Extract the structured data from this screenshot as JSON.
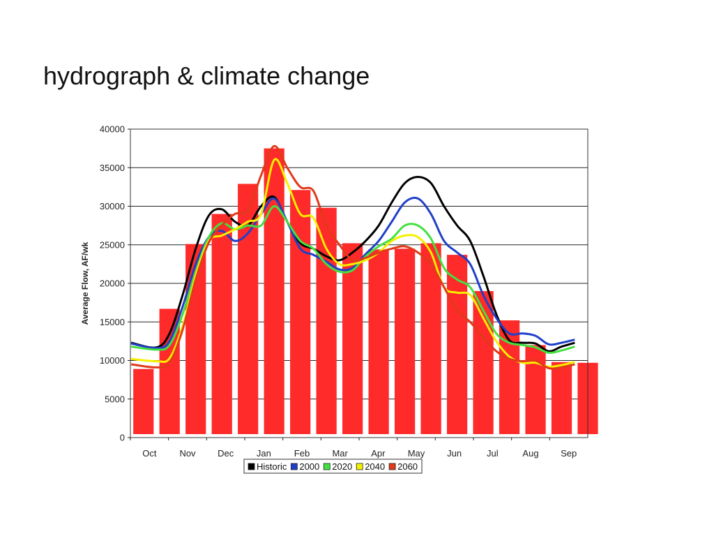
{
  "slide": {
    "title": "hydrograph & climate change"
  },
  "chart_data": {
    "type": "bar",
    "title": "",
    "xlabel": "",
    "ylabel": "Average Flow, AF/wk",
    "ylim": [
      0,
      40000
    ],
    "yticks": [
      0,
      5000,
      10000,
      15000,
      20000,
      25000,
      30000,
      35000,
      40000
    ],
    "grid": true,
    "legend_position": "bottom",
    "month_labels": [
      "Oct",
      "Nov",
      "Dec",
      "Jan",
      "Feb",
      "Mar",
      "Apr",
      "May",
      "Jun",
      "Jul",
      "Aug",
      "Sep"
    ],
    "bars": {
      "color": "#ff2a2a",
      "values": [
        8900,
        16700,
        25100,
        29000,
        32900,
        37500,
        32100,
        29800,
        25200,
        24400,
        24500,
        25200,
        23700,
        19000,
        15200,
        12000,
        9800,
        9700
      ]
    },
    "series": [
      {
        "name": "Historic",
        "color": "#000000",
        "points": [
          [
            0,
            12300
          ],
          [
            0.5,
            11700
          ],
          [
            1,
            13500
          ],
          [
            1.5,
            18500
          ],
          [
            2,
            24500
          ],
          [
            2.5,
            28800
          ],
          [
            3,
            29600
          ],
          [
            3.5,
            28000
          ],
          [
            4,
            27500
          ],
          [
            4.5,
            30000
          ],
          [
            5,
            31200
          ],
          [
            5.5,
            28000
          ],
          [
            6,
            25200
          ],
          [
            6.5,
            24500
          ],
          [
            7,
            23500
          ],
          [
            7.5,
            23000
          ],
          [
            8,
            24000
          ],
          [
            8.5,
            25500
          ],
          [
            9,
            27500
          ],
          [
            9.5,
            30500
          ],
          [
            10,
            33000
          ],
          [
            10.5,
            33800
          ],
          [
            11,
            33000
          ],
          [
            11.5,
            30000
          ],
          [
            12,
            27500
          ],
          [
            12.5,
            25500
          ],
          [
            13,
            21000
          ],
          [
            13.5,
            16000
          ],
          [
            14,
            12600
          ],
          [
            14.5,
            12300
          ],
          [
            15,
            12200
          ],
          [
            15.5,
            11200
          ],
          [
            16,
            11800
          ],
          [
            16.5,
            12300
          ]
        ]
      },
      {
        "name": "2000",
        "color": "#1f3fc8",
        "points": [
          [
            0,
            12200
          ],
          [
            0.5,
            11600
          ],
          [
            1,
            12500
          ],
          [
            1.5,
            17000
          ],
          [
            2,
            22500
          ],
          [
            2.5,
            26000
          ],
          [
            3,
            26800
          ],
          [
            3.5,
            25500
          ],
          [
            4,
            26500
          ],
          [
            4.5,
            29000
          ],
          [
            5,
            31000
          ],
          [
            5.5,
            28000
          ],
          [
            6,
            24500
          ],
          [
            6.5,
            23700
          ],
          [
            7,
            22800
          ],
          [
            7.5,
            21800
          ],
          [
            8,
            22000
          ],
          [
            8.5,
            23800
          ],
          [
            9,
            25500
          ],
          [
            9.5,
            28000
          ],
          [
            10,
            30500
          ],
          [
            10.5,
            31000
          ],
          [
            11,
            29000
          ],
          [
            11.5,
            25500
          ],
          [
            12,
            24000
          ],
          [
            12.5,
            22500
          ],
          [
            13,
            18500
          ],
          [
            13.5,
            15500
          ],
          [
            14,
            13500
          ],
          [
            14.5,
            13500
          ],
          [
            15,
            13200
          ],
          [
            15.5,
            12100
          ],
          [
            16,
            12300
          ],
          [
            16.5,
            12700
          ]
        ]
      },
      {
        "name": "2020",
        "color": "#44e040",
        "points": [
          [
            0,
            11800
          ],
          [
            0.5,
            11400
          ],
          [
            1,
            12000
          ],
          [
            1.5,
            16000
          ],
          [
            2,
            21500
          ],
          [
            2.5,
            26000
          ],
          [
            3,
            27800
          ],
          [
            3.5,
            27000
          ],
          [
            4,
            27500
          ],
          [
            4.5,
            27500
          ],
          [
            5,
            30000
          ],
          [
            5.5,
            28000
          ],
          [
            6,
            25500
          ],
          [
            6.5,
            24500
          ],
          [
            7,
            22500
          ],
          [
            7.5,
            21500
          ],
          [
            8,
            21700
          ],
          [
            8.5,
            23500
          ],
          [
            9,
            24800
          ],
          [
            9.5,
            25800
          ],
          [
            10,
            27500
          ],
          [
            10.5,
            27500
          ],
          [
            11,
            25800
          ],
          [
            11.5,
            22000
          ],
          [
            12,
            20500
          ],
          [
            12.5,
            19500
          ],
          [
            13,
            16500
          ],
          [
            13.5,
            13500
          ],
          [
            14,
            12300
          ],
          [
            14.5,
            12000
          ],
          [
            15,
            11700
          ],
          [
            15.5,
            11000
          ],
          [
            16,
            11300
          ],
          [
            16.5,
            11800
          ]
        ]
      },
      {
        "name": "2040",
        "color": "#f5f000",
        "points": [
          [
            0,
            10200
          ],
          [
            0.5,
            9900
          ],
          [
            1,
            10300
          ],
          [
            1.5,
            14500
          ],
          [
            2,
            21000
          ],
          [
            2.5,
            25500
          ],
          [
            3,
            26200
          ],
          [
            3.5,
            27000
          ],
          [
            4,
            28000
          ],
          [
            4.5,
            29000
          ],
          [
            5,
            36000
          ],
          [
            5.5,
            33000
          ],
          [
            6,
            29000
          ],
          [
            6.5,
            28500
          ],
          [
            7,
            24500
          ],
          [
            7.5,
            22500
          ],
          [
            8,
            22500
          ],
          [
            8.5,
            23000
          ],
          [
            9,
            24000
          ],
          [
            9.5,
            25500
          ],
          [
            10,
            26200
          ],
          [
            10.5,
            26000
          ],
          [
            11,
            24000
          ],
          [
            11.5,
            19500
          ],
          [
            12,
            18800
          ],
          [
            12.5,
            18500
          ],
          [
            13,
            15500
          ],
          [
            13.5,
            12500
          ],
          [
            14,
            10500
          ],
          [
            14.5,
            9700
          ],
          [
            15,
            9700
          ],
          [
            15.5,
            9200
          ],
          [
            16,
            9400
          ],
          [
            16.5,
            9800
          ]
        ]
      },
      {
        "name": "2060",
        "color": "#e03a1a",
        "points": [
          [
            0,
            9500
          ],
          [
            0.5,
            9100
          ],
          [
            1,
            9700
          ],
          [
            1.5,
            14000
          ],
          [
            2,
            20500
          ],
          [
            2.5,
            25300
          ],
          [
            3,
            27500
          ],
          [
            3.5,
            29000
          ],
          [
            4,
            29500
          ],
          [
            4.5,
            34000
          ],
          [
            5,
            37800
          ],
          [
            5.5,
            35000
          ],
          [
            6,
            32500
          ],
          [
            6.5,
            32000
          ],
          [
            7,
            27500
          ],
          [
            7.5,
            25000
          ],
          [
            8,
            23000
          ],
          [
            8.5,
            23300
          ],
          [
            9,
            24000
          ],
          [
            9.5,
            24500
          ],
          [
            10,
            24800
          ],
          [
            10.5,
            24000
          ],
          [
            11,
            22500
          ],
          [
            11.5,
            19500
          ],
          [
            12,
            16500
          ],
          [
            12.5,
            15000
          ],
          [
            13,
            13000
          ],
          [
            13.5,
            11200
          ],
          [
            14,
            10200
          ],
          [
            14.5,
            9900
          ],
          [
            15,
            10000
          ],
          [
            15.5,
            9000
          ],
          [
            16,
            9100
          ],
          [
            16.5,
            9500
          ]
        ]
      }
    ]
  }
}
